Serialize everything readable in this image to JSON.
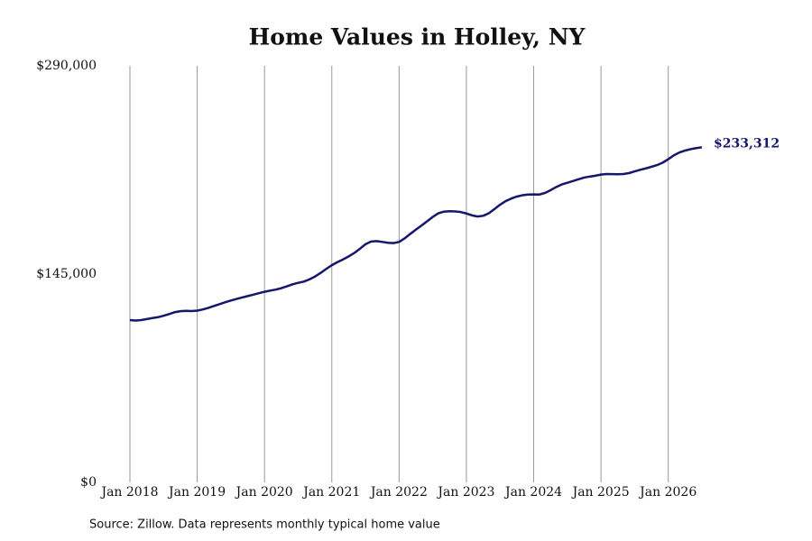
{
  "chart_data": {
    "type": "line",
    "title": "Home Values in Holley, NY",
    "source": "Source: Zillow. Data represents monthly typical home value",
    "x": [
      "2018-01",
      "2018-02",
      "2018-03",
      "2018-04",
      "2018-05",
      "2018-06",
      "2018-07",
      "2018-08",
      "2018-09",
      "2018-10",
      "2018-11",
      "2018-12",
      "2019-01",
      "2019-02",
      "2019-03",
      "2019-04",
      "2019-05",
      "2019-06",
      "2019-07",
      "2019-08",
      "2019-09",
      "2019-10",
      "2019-11",
      "2019-12",
      "2020-01",
      "2020-02",
      "2020-03",
      "2020-04",
      "2020-05",
      "2020-06",
      "2020-07",
      "2020-08",
      "2020-09",
      "2020-10",
      "2020-11",
      "2020-12",
      "2021-01",
      "2021-02",
      "2021-03",
      "2021-04",
      "2021-05",
      "2021-06",
      "2021-07",
      "2021-08",
      "2021-09",
      "2021-10",
      "2021-11",
      "2021-12",
      "2022-01",
      "2022-02",
      "2022-03",
      "2022-04",
      "2022-05",
      "2022-06",
      "2022-07",
      "2022-08",
      "2022-09",
      "2022-10",
      "2022-11",
      "2022-12",
      "2023-01",
      "2023-02",
      "2023-03",
      "2023-04",
      "2023-05",
      "2023-06",
      "2023-07",
      "2023-08",
      "2023-09",
      "2023-10",
      "2023-11",
      "2023-12",
      "2024-01",
      "2024-02",
      "2024-03",
      "2024-04",
      "2024-05",
      "2024-06",
      "2024-07",
      "2024-08",
      "2024-09",
      "2024-10",
      "2024-11",
      "2024-12",
      "2025-01",
      "2025-02",
      "2025-03",
      "2025-04",
      "2025-05",
      "2025-06",
      "2025-07",
      "2025-08",
      "2025-09",
      "2025-10",
      "2025-11",
      "2025-12",
      "2026-01",
      "2026-02",
      "2026-03",
      "2026-04",
      "2026-05",
      "2026-06",
      "2026-07"
    ],
    "series": [
      {
        "name": "Home value",
        "color": "#16166b",
        "values": [
          113000,
          112700,
          113000,
          113700,
          114400,
          115000,
          116000,
          117200,
          118500,
          119200,
          119400,
          119300,
          119600,
          120400,
          121500,
          122800,
          124100,
          125400,
          126600,
          127700,
          128700,
          129700,
          130700,
          131700,
          132700,
          133500,
          134200,
          135200,
          136500,
          137900,
          138900,
          139800,
          141300,
          143300,
          145800,
          148600,
          151200,
          153300,
          155200,
          157300,
          159700,
          162600,
          165800,
          167700,
          168000,
          167400,
          166800,
          166600,
          167400,
          169900,
          173000,
          176000,
          178800,
          181800,
          184800,
          187300,
          188500,
          188800,
          188600,
          188200,
          187200,
          185900,
          185100,
          185600,
          187400,
          190300,
          193300,
          195800,
          197600,
          199000,
          199900,
          200400,
          200500,
          200400,
          201500,
          203400,
          205600,
          207400,
          208600,
          209800,
          211000,
          212200,
          212900,
          213500,
          214300,
          214700,
          214600,
          214500,
          214700,
          215300,
          216500,
          217600,
          218600,
          219700,
          220900,
          222600,
          225000,
          227700,
          229700,
          231000,
          232000,
          232700,
          233312
        ],
        "value_labels": [
          null,
          null,
          null,
          null,
          null,
          null,
          null,
          null,
          null,
          null,
          null,
          null,
          null,
          null,
          null,
          null,
          null,
          null,
          null,
          null,
          null,
          null,
          null,
          null,
          null,
          null,
          null,
          null,
          null,
          null,
          null,
          null,
          null,
          null,
          null,
          null,
          null,
          null,
          null,
          null,
          null,
          null,
          null,
          null,
          null,
          null,
          null,
          null,
          null,
          null,
          null,
          null,
          null,
          null,
          null,
          null,
          null,
          null,
          null,
          null,
          null,
          null,
          null,
          null,
          null,
          null,
          null,
          null,
          null,
          null,
          null,
          null,
          null,
          null,
          null,
          null,
          null,
          null,
          null,
          null,
          null,
          null,
          null,
          null,
          null,
          null,
          null,
          null,
          null,
          null,
          null,
          null,
          null,
          null,
          null,
          null,
          null,
          null,
          null,
          null,
          null,
          null,
          "$233,312"
        ]
      }
    ],
    "xlim": [
      "2018-01",
      "2026-07"
    ],
    "xticks": [
      {
        "value": "2018-01",
        "label": "Jan 2018"
      },
      {
        "value": "2019-01",
        "label": "Jan 2019"
      },
      {
        "value": "2020-01",
        "label": "Jan 2020"
      },
      {
        "value": "2021-01",
        "label": "Jan 2021"
      },
      {
        "value": "2022-01",
        "label": "Jan 2022"
      },
      {
        "value": "2023-01",
        "label": "Jan 2023"
      },
      {
        "value": "2024-01",
        "label": "Jan 2024"
      },
      {
        "value": "2025-01",
        "label": "Jan 2025"
      },
      {
        "value": "2026-01",
        "label": "Jan 2026"
      }
    ],
    "ylim": [
      0,
      290000
    ],
    "yticks": [
      {
        "value": 0,
        "label": "$0"
      },
      {
        "value": 145000,
        "label": "$145,000"
      },
      {
        "value": 290000,
        "label": "$290,000"
      }
    ],
    "grid": true
  }
}
